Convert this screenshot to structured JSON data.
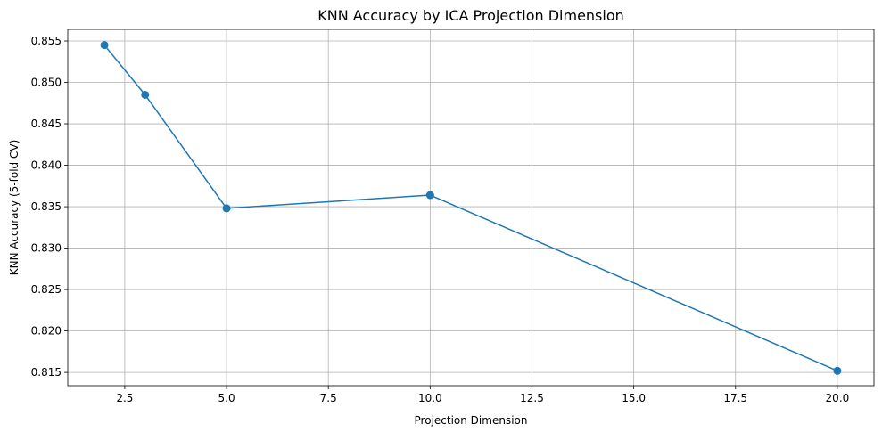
{
  "chart_data": {
    "type": "line",
    "title": "KNN Accuracy by ICA Projection Dimension",
    "xlabel": "Projection Dimension",
    "ylabel": "KNN Accuracy (5-fold CV)",
    "xlim": [
      1.1,
      20.9
    ],
    "ylim": [
      0.8134,
      0.8564
    ],
    "xticks": [
      2.5,
      5.0,
      7.5,
      10.0,
      12.5,
      15.0,
      17.5,
      20.0
    ],
    "xtick_labels": [
      "2.5",
      "5.0",
      "7.5",
      "10.0",
      "12.5",
      "15.0",
      "17.5",
      "20.0"
    ],
    "yticks": [
      0.815,
      0.82,
      0.825,
      0.83,
      0.835,
      0.84,
      0.845,
      0.85,
      0.855
    ],
    "ytick_labels": [
      "0.815",
      "0.820",
      "0.825",
      "0.830",
      "0.835",
      "0.840",
      "0.845",
      "0.850",
      "0.855"
    ],
    "grid": true,
    "series": [
      {
        "color": "#1f77b4",
        "marker": "circle",
        "x": [
          2,
          3,
          5,
          10,
          20
        ],
        "y": [
          0.8545,
          0.8485,
          0.8348,
          0.8364,
          0.8152
        ]
      }
    ]
  }
}
